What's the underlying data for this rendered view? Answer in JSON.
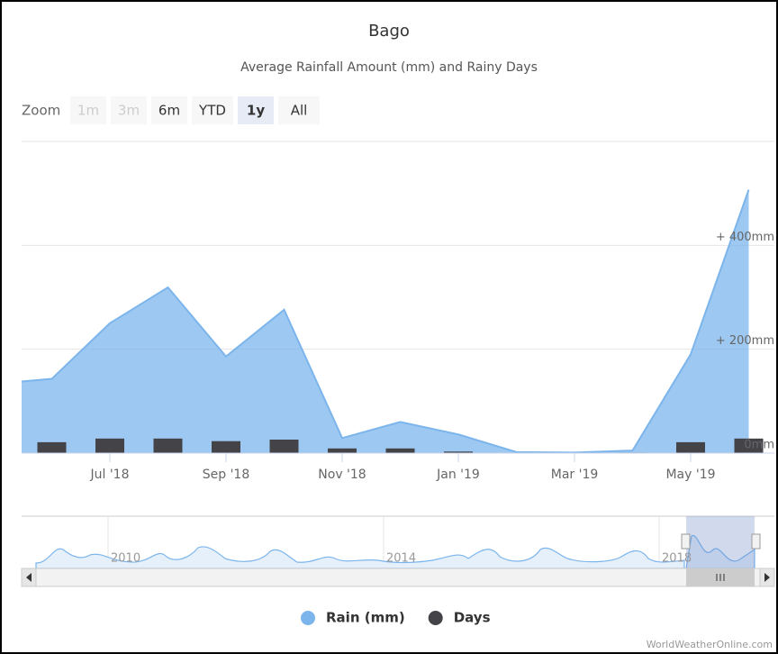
{
  "chart_data": {
    "type": "area",
    "title": "Bago",
    "subtitle": "Average Rainfall Amount (mm) and Rainy Days",
    "categories": [
      null,
      null,
      "Jul '18",
      null,
      "Sep '18",
      null,
      "Nov '18",
      null,
      "Jan '19",
      null,
      "Mar '19",
      null,
      "May '19",
      null
    ],
    "series": [
      {
        "name": "Rain (mm)",
        "type": "area",
        "color": "#7cb5ec",
        "values": [
          133,
          143,
          250,
          319,
          186,
          276,
          29,
          60,
          36,
          2,
          1,
          5,
          190,
          507
        ]
      },
      {
        "name": "Days",
        "type": "column",
        "color": "#434348",
        "values": [
          null,
          21,
          28,
          28,
          23,
          26,
          9,
          9,
          3,
          0,
          0,
          1,
          21,
          28
        ]
      }
    ],
    "ylim": [
      0,
      600
    ],
    "yticks": [
      {
        "value": 0,
        "label": "0mm"
      },
      {
        "value": 200,
        "label": "+ 200mm"
      },
      {
        "value": 400,
        "label": "+ 400mm"
      }
    ],
    "grid": true
  },
  "range_selector": {
    "label": "Zoom",
    "buttons": [
      "1m",
      "3m",
      "6m",
      "YTD",
      "1y",
      "All"
    ],
    "disabled": [
      "1m",
      "3m"
    ],
    "selected": "1y"
  },
  "navigator": {
    "labels": [
      "2010",
      "2014",
      "2018"
    ]
  },
  "credits": "WorldWeatherOnline.com"
}
